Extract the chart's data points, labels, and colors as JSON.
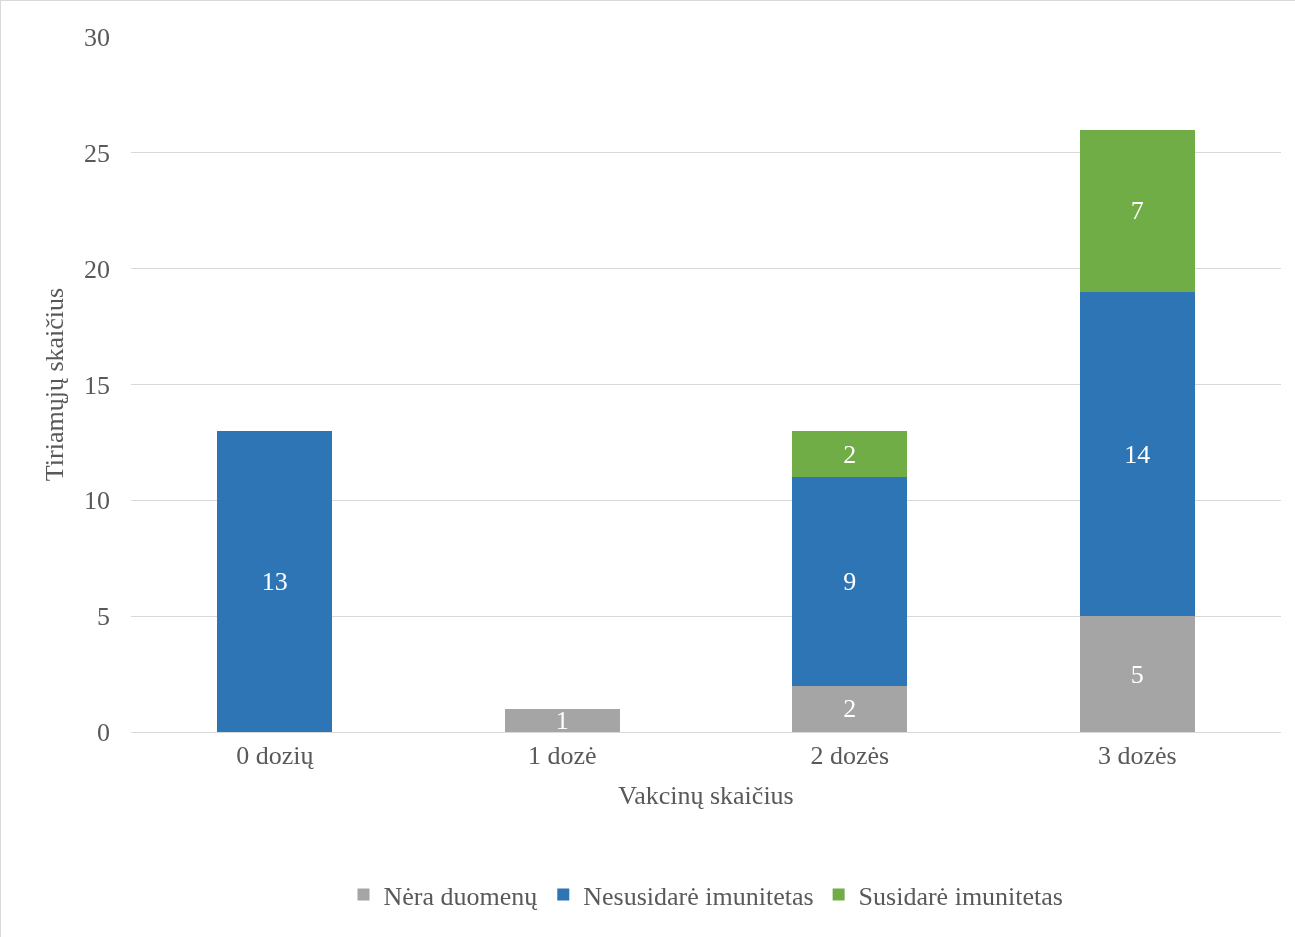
{
  "chart_data": {
    "type": "bar",
    "stacked": true,
    "xlabel": "Vakcinų skaičius",
    "ylabel": "Tiriamųjų skaičius",
    "categories": [
      "0 dozių",
      "1 dozė",
      "2 dozės",
      "3 dozės"
    ],
    "series": [
      {
        "name": "Nėra duomenų",
        "color": "#a5a5a5",
        "values": [
          null,
          1,
          2,
          5
        ]
      },
      {
        "name": "Nesusidarė imunitetas",
        "color": "#2e75b6",
        "values": [
          13,
          null,
          9,
          14
        ]
      },
      {
        "name": "Susidarė imunitetas",
        "color": "#70ad47",
        "values": [
          null,
          null,
          2,
          7
        ]
      }
    ],
    "ylim": [
      0,
      30
    ],
    "yticks": [
      0,
      5,
      10,
      15,
      20,
      25,
      30
    ],
    "grid": "y",
    "legend": "bottom",
    "data_labels": true
  }
}
